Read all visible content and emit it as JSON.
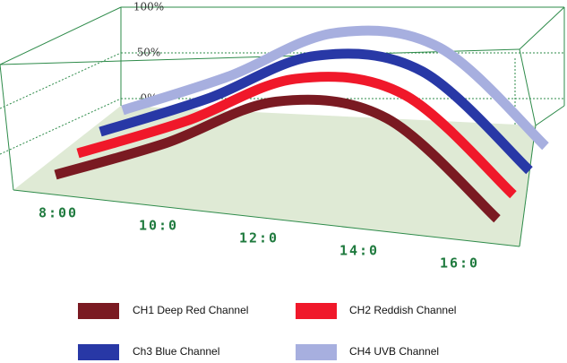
{
  "chart_data": {
    "type": "line",
    "categories": [
      "8:00",
      "10:0",
      "12:0",
      "14:0",
      "16:0"
    ],
    "ylim": [
      0,
      100
    ],
    "yticks": [
      {
        "value": 0,
        "label": "0%"
      },
      {
        "value": 50,
        "label": "50%"
      },
      {
        "value": 100,
        "label": "100%"
      }
    ],
    "series": [
      {
        "name": "CH1 Deep Red Channel",
        "color": "#7a1a22",
        "values": [
          0,
          28,
          62,
          60,
          6
        ]
      },
      {
        "name": "CH2 Reddish Channel",
        "color": "#f0182a",
        "values": [
          0,
          28,
          62,
          60,
          6
        ]
      },
      {
        "name": "Ch3  Blue Channel",
        "color": "#2838a6",
        "values": [
          0,
          28,
          62,
          60,
          6
        ]
      },
      {
        "name": "CH4 UVB Channel",
        "color": "#a7afdf",
        "values": [
          0,
          28,
          62,
          60,
          6
        ]
      }
    ]
  }
}
